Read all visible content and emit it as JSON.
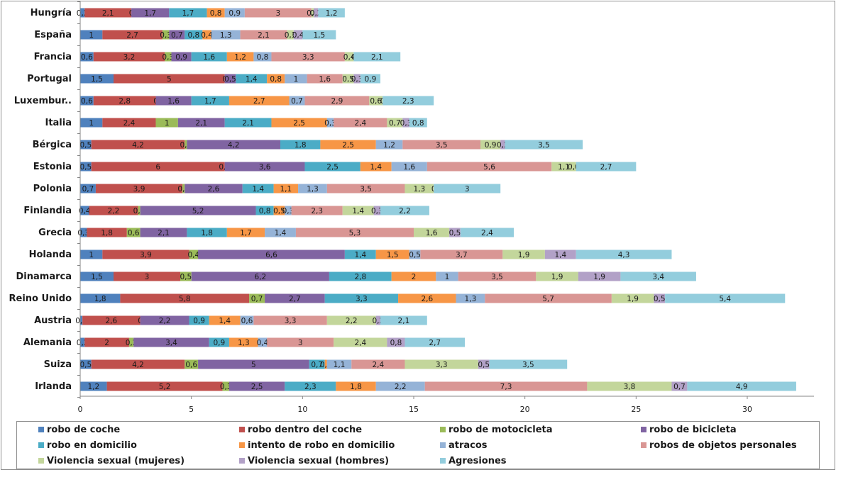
{
  "chart_data": {
    "type": "bar",
    "orientation": "horizontal",
    "stacked": true,
    "categories": [
      "Hungría",
      "España",
      "Francia",
      "Portugal",
      "Luxembur..",
      "Italia",
      "Bérgica",
      "Estonia",
      "Polonia",
      "Finlandia",
      "Grecia",
      "Holanda",
      "Dinamarca",
      "Reino Unido",
      "Austria",
      "Alemania",
      "Suiza",
      "Irlanda"
    ],
    "series": [
      {
        "name": "robo de coche",
        "color": "#4f81bd",
        "values": [
          0.2,
          1,
          0.6,
          1.5,
          0.6,
          1,
          0.5,
          0.5,
          0.7,
          0.4,
          0.3,
          1,
          1.5,
          1.8,
          0.1,
          0.2,
          0.5,
          1.2
        ],
        "labels": [
          "0,2",
          "1",
          "0,6",
          "1,5",
          "0,6",
          "1",
          "0,5",
          "0,5",
          "0,7",
          "0,4",
          "0,3",
          "1",
          "1,5",
          "1,8",
          "0,1",
          "0,2",
          "0,5",
          "1,2"
        ]
      },
      {
        "name": "robo dentro del coche",
        "color": "#c0504d",
        "values": [
          2.1,
          2.7,
          3.2,
          5,
          2.8,
          2.4,
          4.2,
          6,
          3.9,
          2.2,
          1.8,
          3.9,
          3,
          5.8,
          2.6,
          2,
          4.2,
          5.2
        ],
        "labels": [
          "2,1",
          "2,7",
          "3,2",
          "5",
          "2,8",
          "2,4",
          "4,2",
          "6",
          "3,9",
          "2,2",
          "1,8",
          "3,9",
          "3",
          "5,8",
          "2,6",
          "2",
          "4,2",
          "5,2"
        ]
      },
      {
        "name": "robo de motocicleta",
        "color": "#9bbb59",
        "values": [
          0,
          0.3,
          0.3,
          0,
          0,
          1,
          0.1,
          0,
          0.1,
          0.1,
          0.6,
          0.4,
          0.5,
          0.7,
          0,
          0.2,
          0.6,
          0.3
        ],
        "labels": [
          "0",
          "0,3",
          "0,3",
          "0",
          "0",
          "1",
          "0,1",
          "0,0",
          "0,1",
          "0,1",
          "0,6",
          "0,4",
          "0,5",
          "0,7",
          "0",
          "0,2",
          "0,6",
          "0,3"
        ]
      },
      {
        "name": "robo de bicicleta",
        "color": "#8064a2",
        "values": [
          1.7,
          0.7,
          0.9,
          0.5,
          1.6,
          2.1,
          4.2,
          3.6,
          2.6,
          5.2,
          2.1,
          6.6,
          6.2,
          2.7,
          2.2,
          3.4,
          5,
          2.5
        ],
        "labels": [
          "1,7",
          "0,7",
          "0,9",
          "0,5",
          "1,6",
          "2,1",
          "4,2",
          "3,6",
          "2,6",
          "5,2",
          "2,1",
          "6,6",
          "6,2",
          "2,7",
          "2,2",
          "3,4",
          "5",
          "2,5"
        ]
      },
      {
        "name": "robo en domicilio",
        "color": "#4bacc6",
        "values": [
          1.7,
          0.8,
          1.6,
          1.4,
          1.7,
          2.1,
          1.8,
          2.5,
          1.4,
          0.8,
          1.8,
          1.4,
          2.8,
          3.3,
          0.9,
          0.9,
          0.7,
          2.3
        ],
        "labels": [
          "1,7",
          "0,8",
          "1,6",
          "1,4",
          "1,7",
          "2,1",
          "1,8",
          "2,5",
          "1,4",
          "0,8",
          "1,8",
          "1,4",
          "2,8",
          "3,3",
          "0,9",
          "0,9",
          "0,7",
          "2,3"
        ]
      },
      {
        "name": "intento de robo en domicilio",
        "color": "#f79646",
        "values": [
          0.8,
          0.4,
          1.2,
          0.8,
          2.7,
          2.5,
          2.5,
          1.4,
          1.1,
          0.5,
          1.7,
          1.5,
          2,
          2.6,
          1.4,
          1.3,
          0.1,
          1.8
        ],
        "labels": [
          "0,8",
          "0,4",
          "1,2",
          "0,8",
          "2,7",
          "2,5",
          "2,5",
          "1,4",
          "1,1",
          "0,5",
          "1,7",
          "1,5",
          "2",
          "2,6",
          "1,4",
          "1,3",
          "0,1",
          "1,8"
        ]
      },
      {
        "name": "atracos",
        "color": "#95b3d7",
        "values": [
          0.9,
          1.3,
          0.8,
          1,
          0.7,
          0.3,
          1.2,
          1.6,
          1.3,
          0.3,
          1.4,
          0.5,
          1,
          1.3,
          0.6,
          0.4,
          1.1,
          2.2
        ],
        "labels": [
          "0,9",
          "1,3",
          "0,8",
          "1",
          "0,7",
          "0,3",
          "1,2",
          "1,6",
          "1,3",
          "0,3",
          "1,4",
          "0,5",
          "1",
          "1,3",
          "0,6",
          "0,4",
          "1,1",
          "2,2"
        ]
      },
      {
        "name": "robos de objetos personales",
        "color": "#d99694",
        "values": [
          3,
          2.1,
          3.3,
          1.6,
          2.9,
          2.4,
          3.5,
          5.6,
          3.5,
          2.3,
          5.3,
          3.7,
          3.5,
          5.7,
          3.3,
          3,
          2.4,
          7.3
        ],
        "labels": [
          "3",
          "2,1",
          "3,3",
          "1,6",
          "2,9",
          "2,4",
          "3,5",
          "5,6",
          "3,5",
          "2,3",
          "5,3",
          "3,7",
          "3,5",
          "5,7",
          "3,3",
          "3",
          "2,4",
          "7,3"
        ]
      },
      {
        "name": "Violencia sexual (mujeres)",
        "color": "#c3d69b",
        "values": [
          0.1,
          0.3,
          0.4,
          0.5,
          0.6,
          0.7,
          0.9,
          1.1,
          1.3,
          1.4,
          1.6,
          1.9,
          1.9,
          1.9,
          2.2,
          2.4,
          3.3,
          3.8
        ],
        "labels": [
          "0,1",
          "0,3",
          "0,4",
          "0,5",
          "0,6",
          "0,7",
          "0,9",
          "1,1",
          "1,3",
          "1,4",
          "1,6",
          "1,9",
          "1,9",
          "1,9",
          "2,2",
          "2,4",
          "3,3",
          "3,8"
        ]
      },
      {
        "name": "Violencia sexual (hombres)",
        "color": "#b2a1c7",
        "values": [
          0.2,
          0.4,
          0,
          0.3,
          0,
          0.3,
          0.2,
          0,
          0,
          0.3,
          0.5,
          1.4,
          1.9,
          0.5,
          0.2,
          0.8,
          0.5,
          0.7
        ],
        "labels": [
          "0,2",
          "0,4",
          "0",
          "0,3",
          "0",
          "0,3",
          "0,2",
          "0,00",
          "0",
          "0,3",
          "0,5",
          "1,4",
          "1,9",
          "0,5",
          "0,2",
          "0,8",
          "0,5",
          "0,7"
        ]
      },
      {
        "name": "Agresiones",
        "color": "#93cddd",
        "values": [
          1.2,
          1.5,
          2.1,
          0.9,
          2.3,
          0.8,
          3.5,
          2.7,
          3,
          2.2,
          2.4,
          4.3,
          3.4,
          5.4,
          2.1,
          2.7,
          3.5,
          4.9
        ],
        "labels": [
          "1,2",
          "1,5",
          "2,1",
          "0,9",
          "2,3",
          "0,8",
          "3,5",
          "2,7",
          "3",
          "2,2",
          "2,4",
          "4,3",
          "3,4",
          "5,4",
          "2,1",
          "2,7",
          "3,5",
          "4,9"
        ]
      }
    ],
    "xlim": [
      0,
      33
    ],
    "xticks": [
      0,
      5,
      10,
      15,
      20,
      25,
      30
    ],
    "xtick_labels": [
      "0",
      "5",
      "10",
      "15",
      "20",
      "25",
      "30"
    ],
    "grid": false,
    "legend_position": "bottom"
  }
}
